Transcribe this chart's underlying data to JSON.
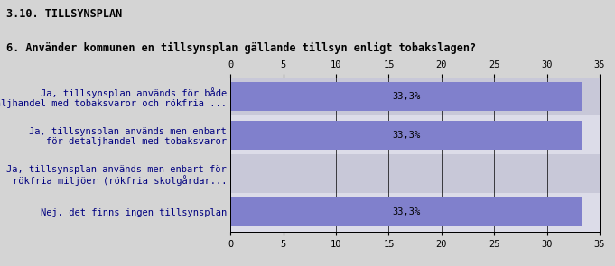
{
  "title1": "3.10. TILLSYNSPLAN",
  "title2": "6. Använder kommunen en tillsynsplan gällande tillsyn enligt tobakslagen?",
  "categories": [
    "Ja, tillsynsplan används för både\ndetaljhandel med tobaksvaror och rökfria ...",
    "Ja, tillsynsplan används men enbart\nför detaljhandel med tobaksvaror",
    "Ja, tillsynsplan används men enbart för\nrökfria miljöer (rökfria skolgårdar...",
    "Nej, det finns ingen tillsynsplan"
  ],
  "values": [
    33.3,
    33.3,
    0.0,
    33.3
  ],
  "bar_color": "#8080cc",
  "bg_color": "#d4d4d4",
  "row_colors": [
    "#c8c8d8",
    "#dcdce8"
  ],
  "label_color": "#000080",
  "text_color": "#000000",
  "xlim": [
    0,
    35
  ],
  "xticks": [
    0,
    5,
    10,
    15,
    20,
    25,
    30,
    35
  ],
  "bar_label": "33,3%",
  "title1_fontsize": 8.5,
  "title2_fontsize": 8.5,
  "tick_fontsize": 7.5,
  "label_fontsize": 7.5,
  "value_fontsize": 7.5,
  "bar_height": 0.75
}
